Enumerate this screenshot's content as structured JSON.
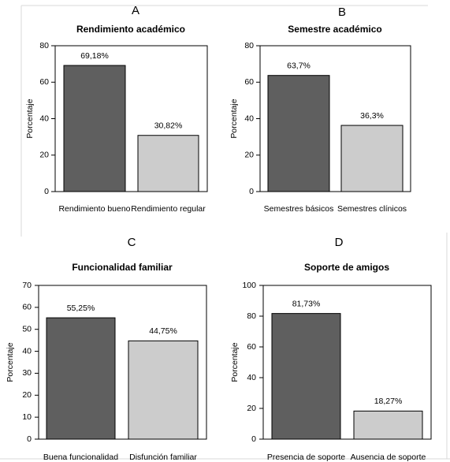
{
  "chart_data": [
    {
      "panel_label": "A",
      "type": "bar",
      "title": "Rendimiento académico",
      "ylabel": "Porcentaje",
      "xlabel": "",
      "ylim": [
        0,
        80
      ],
      "yticks": [
        0,
        20,
        40,
        60,
        80
      ],
      "categories": [
        "Rendimiento bueno",
        "Rendimiento regular"
      ],
      "values": [
        69.18,
        30.82
      ],
      "value_labels": [
        "69,18%",
        "30,82%"
      ],
      "bar_colors": [
        "#5f5f5f",
        "#cccccc"
      ],
      "grid": false,
      "legend": "none"
    },
    {
      "panel_label": "B",
      "type": "bar",
      "title": "Semestre académico",
      "ylabel": "Porcentaje",
      "xlabel": "",
      "ylim": [
        0,
        80
      ],
      "yticks": [
        0,
        20,
        40,
        60,
        80
      ],
      "categories": [
        "Semestres básicos",
        "Semestres clínicos"
      ],
      "values": [
        63.7,
        36.3
      ],
      "value_labels": [
        "63,7%",
        "36,3%"
      ],
      "bar_colors": [
        "#5f5f5f",
        "#cccccc"
      ],
      "grid": false,
      "legend": "none"
    },
    {
      "panel_label": "C",
      "type": "bar",
      "title": "Funcionalidad familiar",
      "ylabel": "Porcentaje",
      "xlabel": "",
      "ylim": [
        0,
        70
      ],
      "yticks": [
        0,
        10,
        20,
        30,
        40,
        50,
        60,
        70
      ],
      "categories": [
        "Buena funcionalidad",
        "Disfunción familiar"
      ],
      "values": [
        55.25,
        44.75
      ],
      "value_labels": [
        "55,25%",
        "44,75%"
      ],
      "bar_colors": [
        "#5f5f5f",
        "#cccccc"
      ],
      "grid": false,
      "legend": "none"
    },
    {
      "panel_label": "D",
      "type": "bar",
      "title": "Soporte de amigos",
      "ylabel": "Porcentaje",
      "xlabel": "",
      "ylim": [
        0,
        100
      ],
      "yticks": [
        0,
        20,
        40,
        60,
        80,
        100
      ],
      "categories": [
        "Presencia de soporte",
        "Ausencia de soporte"
      ],
      "values": [
        81.73,
        18.27
      ],
      "value_labels": [
        "81,73%",
        "18,27%"
      ],
      "bar_colors": [
        "#5f5f5f",
        "#cccccc"
      ],
      "grid": false,
      "legend": "none"
    }
  ]
}
